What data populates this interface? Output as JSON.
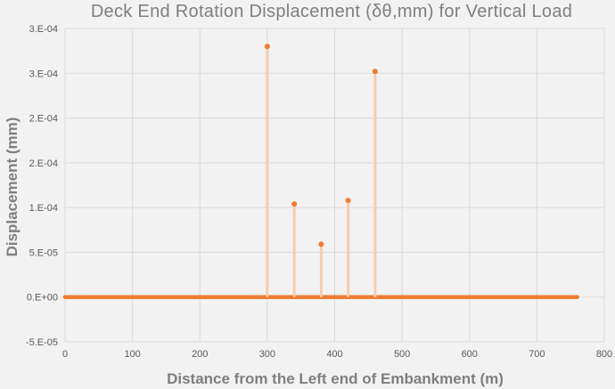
{
  "chart_data": {
    "type": "scatter",
    "title": "Deck End Rotation Displacement (δθ,mm) for Vertical Load",
    "xlabel": "Distance from the Left end of Embankment (m)",
    "ylabel": "Displacement (mm)",
    "xlim": [
      0,
      800
    ],
    "ylim": [
      -5e-05,
      0.0003
    ],
    "x_ticks": [
      0,
      100,
      200,
      300,
      400,
      500,
      600,
      700,
      800
    ],
    "x_tick_labels": [
      "0",
      "100",
      "200",
      "300",
      "400",
      "500",
      "600",
      "700",
      "800"
    ],
    "y_ticks": [
      -5e-05,
      0,
      5e-05,
      0.0001,
      0.00015,
      0.0002,
      0.00025,
      0.0003
    ],
    "y_tick_labels": [
      "-5.E-05",
      "0.E+00",
      "5.E-05",
      "1.E-04",
      "2.E-04",
      "2.E-04",
      "3.E-04",
      "3.E-04"
    ],
    "grid": true,
    "legend": "none",
    "baseline": {
      "x_range": [
        0,
        760
      ],
      "y": 0
    },
    "series": [
      {
        "x": [
          300,
          340,
          380,
          420,
          460
        ],
        "y": [
          0.00028,
          0.000104,
          5.9e-05,
          0.000108,
          0.000252
        ]
      }
    ],
    "colors": {
      "marker": "#ed7d31",
      "drop_line": "#f8cbad",
      "grid": "#d9d9d9"
    }
  }
}
